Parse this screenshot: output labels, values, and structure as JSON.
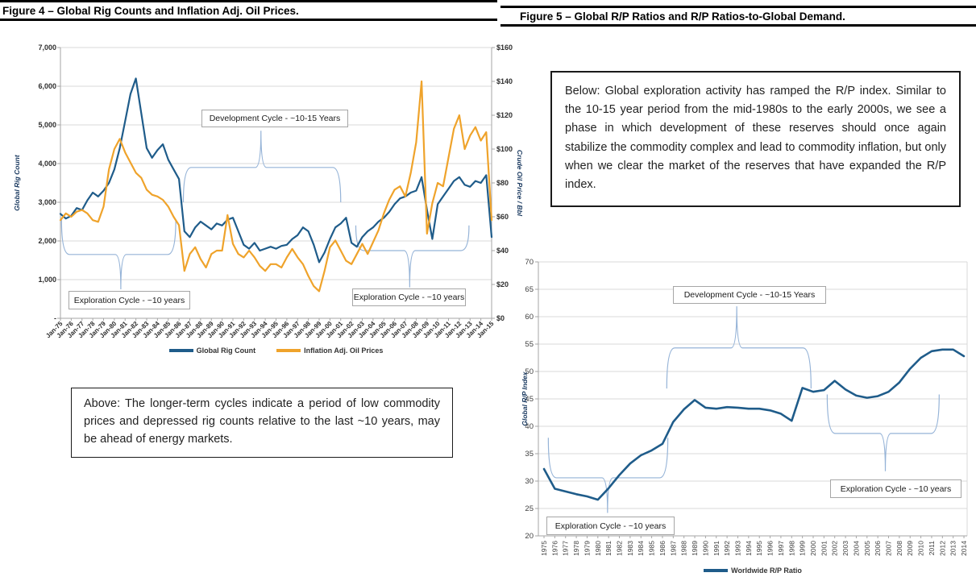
{
  "colors": {
    "rig_blue": "#1F5C8A",
    "oil_orange": "#EFA32B",
    "brace_blue": "#95B3D7",
    "grid": "#D9D9D9",
    "axis": "#A6A6A6"
  },
  "commentary": {
    "above": "Above: The longer-term cycles indicate a period of low commodity prices and depressed rig counts relative to the last ~10 years, may be ahead of energy markets.",
    "below": "Below: Global exploration activity has ramped the R/P index. Similar to the 10-15 year period from the mid-1980s to the early 2000s, we see a phase in which development of these reserves should once again stabilize the commodity complex and lead to commodity inflation, but only when we clear the market of the reserves that have expanded the R/P index."
  },
  "chart_data": [
    {
      "type": "line",
      "title": "Figure 4 – Global Rig Counts and Inflation Adj. Oil Prices.",
      "y_left_axis": {
        "title": "Global Rig Count",
        "min": 0,
        "max": 7000,
        "tick_values": [
          0,
          1000,
          2000,
          3000,
          4000,
          5000,
          6000,
          7000
        ],
        "tick_labels": [
          "-",
          "1,000",
          "2,000",
          "3,000",
          "4,000",
          "5,000",
          "6,000",
          "7,000"
        ]
      },
      "y_right_axis": {
        "title": "Crude Oil Price / Bbl",
        "min": 0,
        "max": 160,
        "tick_values": [
          0,
          20,
          40,
          60,
          80,
          100,
          120,
          140,
          160
        ],
        "tick_labels": [
          "$0",
          "$20",
          "$40",
          "$60",
          "$80",
          "$100",
          "$120",
          "$140",
          "$160"
        ]
      },
      "x_axis": {
        "tick_labels": [
          "Jan-75",
          "Jan-76",
          "Jan-77",
          "Jan-78",
          "Jan-79",
          "Jan-80",
          "Jan-81",
          "Jan-82",
          "Jan-83",
          "Jan-84",
          "Jan-85",
          "Jan-86",
          "Jan-87",
          "Jan-88",
          "Jan-89",
          "Jan-90",
          "Jan-91",
          "Jan-92",
          "Jan-93",
          "Jan-94",
          "Jan-95",
          "Jan-96",
          "Jan-97",
          "Jan-98",
          "Jan-99",
          "Jan-00",
          "Jan-01",
          "Jan-02",
          "Jan-03",
          "Jan-04",
          "Jan-05",
          "Jan-06",
          "Jan-07",
          "Jan-08",
          "Jan-09",
          "Jan-10",
          "Jan-11",
          "Jan-12",
          "Jan-13",
          "Jan-14",
          "Jan-15"
        ]
      },
      "x": [
        1975,
        1975.5,
        1976,
        1976.5,
        1977,
        1977.5,
        1978,
        1978.5,
        1979,
        1979.5,
        1980,
        1980.5,
        1981,
        1981.5,
        1982,
        1982.5,
        1983,
        1983.5,
        1984,
        1984.5,
        1985,
        1985.5,
        1986,
        1986.5,
        1987,
        1987.5,
        1988,
        1988.5,
        1989,
        1989.5,
        1990,
        1990.5,
        1991,
        1991.5,
        1992,
        1992.5,
        1993,
        1993.5,
        1994,
        1994.5,
        1995,
        1995.5,
        1996,
        1996.5,
        1997,
        1997.5,
        1998,
        1998.5,
        1999,
        1999.5,
        2000,
        2000.5,
        2001,
        2001.5,
        2002,
        2002.5,
        2003,
        2003.5,
        2004,
        2004.5,
        2005,
        2005.5,
        2006,
        2006.5,
        2007,
        2007.5,
        2008,
        2008.5,
        2009,
        2009.5,
        2010,
        2010.5,
        2011,
        2011.5,
        2012,
        2012.5,
        2013,
        2013.5,
        2014,
        2014.5,
        2015
      ],
      "series": [
        {
          "name": "Global Rig Count",
          "axis": "left",
          "color": "#1F5C8A",
          "values": [
            2700,
            2580,
            2650,
            2850,
            2800,
            3050,
            3250,
            3150,
            3300,
            3500,
            3850,
            4400,
            5100,
            5800,
            6200,
            5300,
            4400,
            4150,
            4350,
            4500,
            4100,
            3850,
            3600,
            2250,
            2100,
            2350,
            2500,
            2400,
            2300,
            2450,
            2400,
            2550,
            2600,
            2250,
            1900,
            1800,
            1950,
            1750,
            1800,
            1850,
            1800,
            1870,
            1900,
            2050,
            2150,
            2350,
            2250,
            1900,
            1450,
            1700,
            2050,
            2350,
            2450,
            2600,
            1950,
            1850,
            2100,
            2250,
            2350,
            2500,
            2600,
            2750,
            2950,
            3100,
            3150,
            3250,
            3300,
            3650,
            2800,
            2050,
            2950,
            3150,
            3350,
            3550,
            3650,
            3450,
            3400,
            3550,
            3500,
            3700,
            2100
          ]
        },
        {
          "name": "Inflation Adj. Oil Prices",
          "axis": "right",
          "color": "#EFA32B",
          "values": [
            58,
            62,
            60,
            63,
            64,
            62,
            58,
            57,
            66,
            88,
            100,
            106,
            98,
            92,
            86,
            83,
            76,
            73,
            72,
            70,
            66,
            60,
            55,
            28,
            38,
            42,
            35,
            30,
            38,
            40,
            40,
            61,
            44,
            38,
            36,
            40,
            36,
            31,
            28,
            32,
            32,
            30,
            36,
            41,
            36,
            32,
            25,
            19,
            16,
            28,
            42,
            46,
            40,
            34,
            32,
            38,
            44,
            38,
            45,
            52,
            62,
            70,
            76,
            78,
            72,
            86,
            104,
            140,
            50,
            68,
            80,
            78,
            95,
            112,
            120,
            100,
            108,
            113,
            105,
            110,
            58
          ]
        }
      ],
      "annotations": [
        {
          "id": "development",
          "label": "Development Cycle - ~10-15 Years"
        },
        {
          "id": "exploration-left",
          "label": "Exploration Cycle - ~10 years"
        },
        {
          "id": "exploration-right",
          "label": "Exploration Cycle - ~10 years"
        }
      ],
      "cycle_braces": [
        {
          "x1": 1975.1,
          "x2": 1985.7,
          "y_base": 1650,
          "y_end": 2550,
          "x_mid": 1980.6,
          "y_tip": 750
        },
        {
          "x1": 1986.4,
          "x2": 2001.0,
          "y_base": 3900,
          "y_end": 3000,
          "x_mid": 1993.6,
          "y_tip": 4850
        },
        {
          "x1": 2002.4,
          "x2": 2012.9,
          "y_base": 1750,
          "y_end": 2400,
          "x_mid": 2007.4,
          "y_tip": 800
        }
      ]
    },
    {
      "type": "line",
      "title": "Figure 5 – Global R/P Ratios and R/P Ratios-to-Global Demand.",
      "y_axis": {
        "title": "Global R/P Index",
        "min": 20,
        "max": 70,
        "tick_values": [
          20,
          25,
          30,
          35,
          40,
          45,
          50,
          55,
          60,
          65,
          70
        ],
        "tick_labels": [
          "20",
          "25",
          "30",
          "35",
          "40",
          "45",
          "50",
          "55",
          "60",
          "65",
          "70"
        ]
      },
      "x_axis": {
        "tick_labels": [
          "1975",
          "1976",
          "1977",
          "1978",
          "1979",
          "1980",
          "1981",
          "1982",
          "1983",
          "1984",
          "1985",
          "1986",
          "1987",
          "1988",
          "1989",
          "1990",
          "1991",
          "1992",
          "1993",
          "1994",
          "1995",
          "1996",
          "1997",
          "1998",
          "1999",
          "2000",
          "2001",
          "2002",
          "2003",
          "2004",
          "2005",
          "2006",
          "2007",
          "2008",
          "2009",
          "2010",
          "2011",
          "2012",
          "2013",
          "2014"
        ]
      },
      "x": [
        1975,
        1976,
        1977,
        1978,
        1979,
        1980,
        1981,
        1982,
        1983,
        1984,
        1985,
        1986,
        1987,
        1988,
        1989,
        1990,
        1991,
        1992,
        1993,
        1994,
        1995,
        1996,
        1997,
        1998,
        1999,
        2000,
        2001,
        2002,
        2003,
        2004,
        2005,
        2006,
        2007,
        2008,
        2009,
        2010,
        2011,
        2012,
        2013,
        2014
      ],
      "series": [
        {
          "name": "Worldwide R/P Ratio",
          "axis": "left",
          "color": "#1F5C8A",
          "values": [
            32.2,
            28.6,
            28.1,
            27.6,
            27.2,
            26.6,
            28.7,
            31.1,
            33.2,
            34.7,
            35.6,
            36.8,
            40.8,
            43.1,
            44.8,
            43.4,
            43.2,
            43.5,
            43.4,
            43.2,
            43.2,
            42.9,
            42.3,
            41.0,
            47.0,
            46.3,
            46.6,
            48.3,
            46.7,
            45.6,
            45.2,
            45.5,
            46.3,
            48.0,
            50.5,
            52.5,
            53.7,
            54.0,
            54.0,
            52.8
          ]
        }
      ],
      "annotations": [
        {
          "id": "development",
          "label": "Development Cycle - ~10-15 Years"
        },
        {
          "id": "exploration-left",
          "label": "Exploration Cycle - ~10 years"
        },
        {
          "id": "exploration-right",
          "label": "Exploration Cycle - ~10 years"
        }
      ],
      "cycle_braces": [
        {
          "x1": 1975.4,
          "x2": 1986.5,
          "y_base": 30.6,
          "y_end": 37.9,
          "x_mid": 1980.9,
          "y_tip": 24.2
        },
        {
          "x1": 1986.4,
          "x2": 1999.8,
          "y_base": 54.3,
          "y_end": 46.9,
          "x_mid": 1992.9,
          "y_tip": 61.9
        },
        {
          "x1": 2001.3,
          "x2": 2011.7,
          "y_base": 38.7,
          "y_end": 45.8,
          "x_mid": 2006.7,
          "y_tip": 31.8
        }
      ]
    }
  ]
}
